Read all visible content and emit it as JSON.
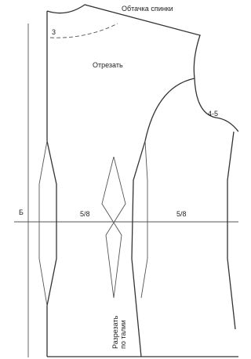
{
  "labels": {
    "facing": "Обтачка спинки",
    "cut_off": "Отрезать",
    "armhole_note": "4-5",
    "neck_mark": "3",
    "waist_mark": "Б",
    "left_fraction": "5/8",
    "right_fraction": "5/8",
    "cut_line1": "Разрезать",
    "cut_line2": "по талии"
  }
}
